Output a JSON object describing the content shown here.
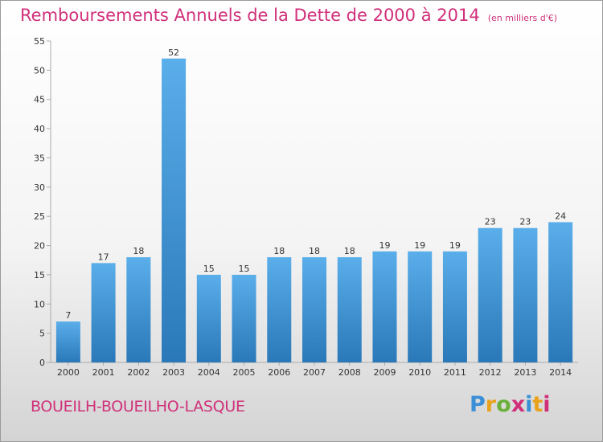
{
  "header": {
    "title": "Remboursements Annuels de la Dette de 2000 à 2014",
    "subtitle": "(en milliers d'€)"
  },
  "footer": {
    "commune": "BOUEILH-BOUEILHO-LASQUE",
    "logo": "Proxiti",
    "logo_colors": [
      "#3a8fd6",
      "#e8a21c",
      "#6ab03a",
      "#d0307a",
      "#3a8fd6",
      "#e8a21c",
      "#d0307a"
    ]
  },
  "colors": {
    "bar_top": "#5aaeea",
    "bar_bottom": "#2a78b8",
    "accent": "#d0307a",
    "grid": "#aaaaaa"
  },
  "chart_data": {
    "type": "bar",
    "title": "Remboursements Annuels de la Dette de 2000 à 2014",
    "subtitle": "(en milliers d'€)",
    "categories": [
      "2000",
      "2001",
      "2002",
      "2003",
      "2004",
      "2005",
      "2006",
      "2007",
      "2008",
      "2009",
      "2010",
      "2011",
      "2012",
      "2013",
      "2014"
    ],
    "values": [
      7,
      17,
      18,
      52,
      15,
      15,
      18,
      18,
      18,
      19,
      19,
      19,
      23,
      23,
      24
    ],
    "data_labels": [
      "7",
      "17",
      "18",
      "52",
      "15",
      "15",
      "18",
      "18",
      "18",
      "19",
      "19",
      "19",
      "23",
      "23",
      "24"
    ],
    "yticks": [
      "0",
      "5",
      "10",
      "15",
      "20",
      "25",
      "30",
      "35",
      "40",
      "45",
      "50",
      "55"
    ],
    "ylim": [
      0,
      55
    ],
    "ytick_step": 5,
    "grid": false,
    "xlabel": "",
    "ylabel": ""
  }
}
